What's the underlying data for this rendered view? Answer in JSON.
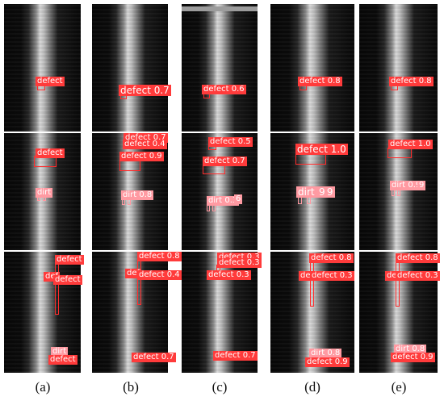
{
  "captions": [
    "(a)",
    "(b)",
    "(c)",
    "(d)",
    "(e)"
  ],
  "labels": {
    "a1": "defect",
    "a2_1": "defect",
    "a2_2": "dirt",
    "a3_1": "defect",
    "a3_2": "def",
    "a3_3": "defect",
    "a3_4": "dirt",
    "a3_5": "defect",
    "b1": "defect 0.7",
    "b2_1": "defect 0.7",
    "b2_2": "defect 0.4",
    "b2_3": "defect 0.9",
    "b2_4": "dirt 0.8",
    "b3_1": "defect 0.8",
    "b3_2": "def",
    "b3_3": "defect 0.4",
    "b3_4": "defect 0.7",
    "c1": "defect 0.6",
    "c2_1": "defect 0.5",
    "c2_2": "defect 0.7",
    "c2_3": "dirt 0.3",
    "c2_4": "6",
    "c3_1": "defect 0.3",
    "c3_2": "defect 0.3",
    "c3_3": "defect 0.3",
    "c3_4": "defect 0.7",
    "d1": "defect 0.8",
    "d2_1": "defect 1.0",
    "d2_2": "dirt 0.9",
    "d2_3": "9",
    "d3_1": "defect 0.8",
    "d3_2": "def",
    "d3_3": "defect 0.3",
    "d3_4": "dirt 0.8",
    "d3_5": "defect 0.9",
    "e1": "defect 0.8",
    "e2_1": "defect 1.0",
    "e2_2": "dirt 0.9",
    "e2_3": "9",
    "e3_1": "defect 0.8",
    "e3_2": "def",
    "e3_3": "defect 0.3",
    "e3_4": "dirt 0.8",
    "e3_5": "defect 0.9"
  }
}
